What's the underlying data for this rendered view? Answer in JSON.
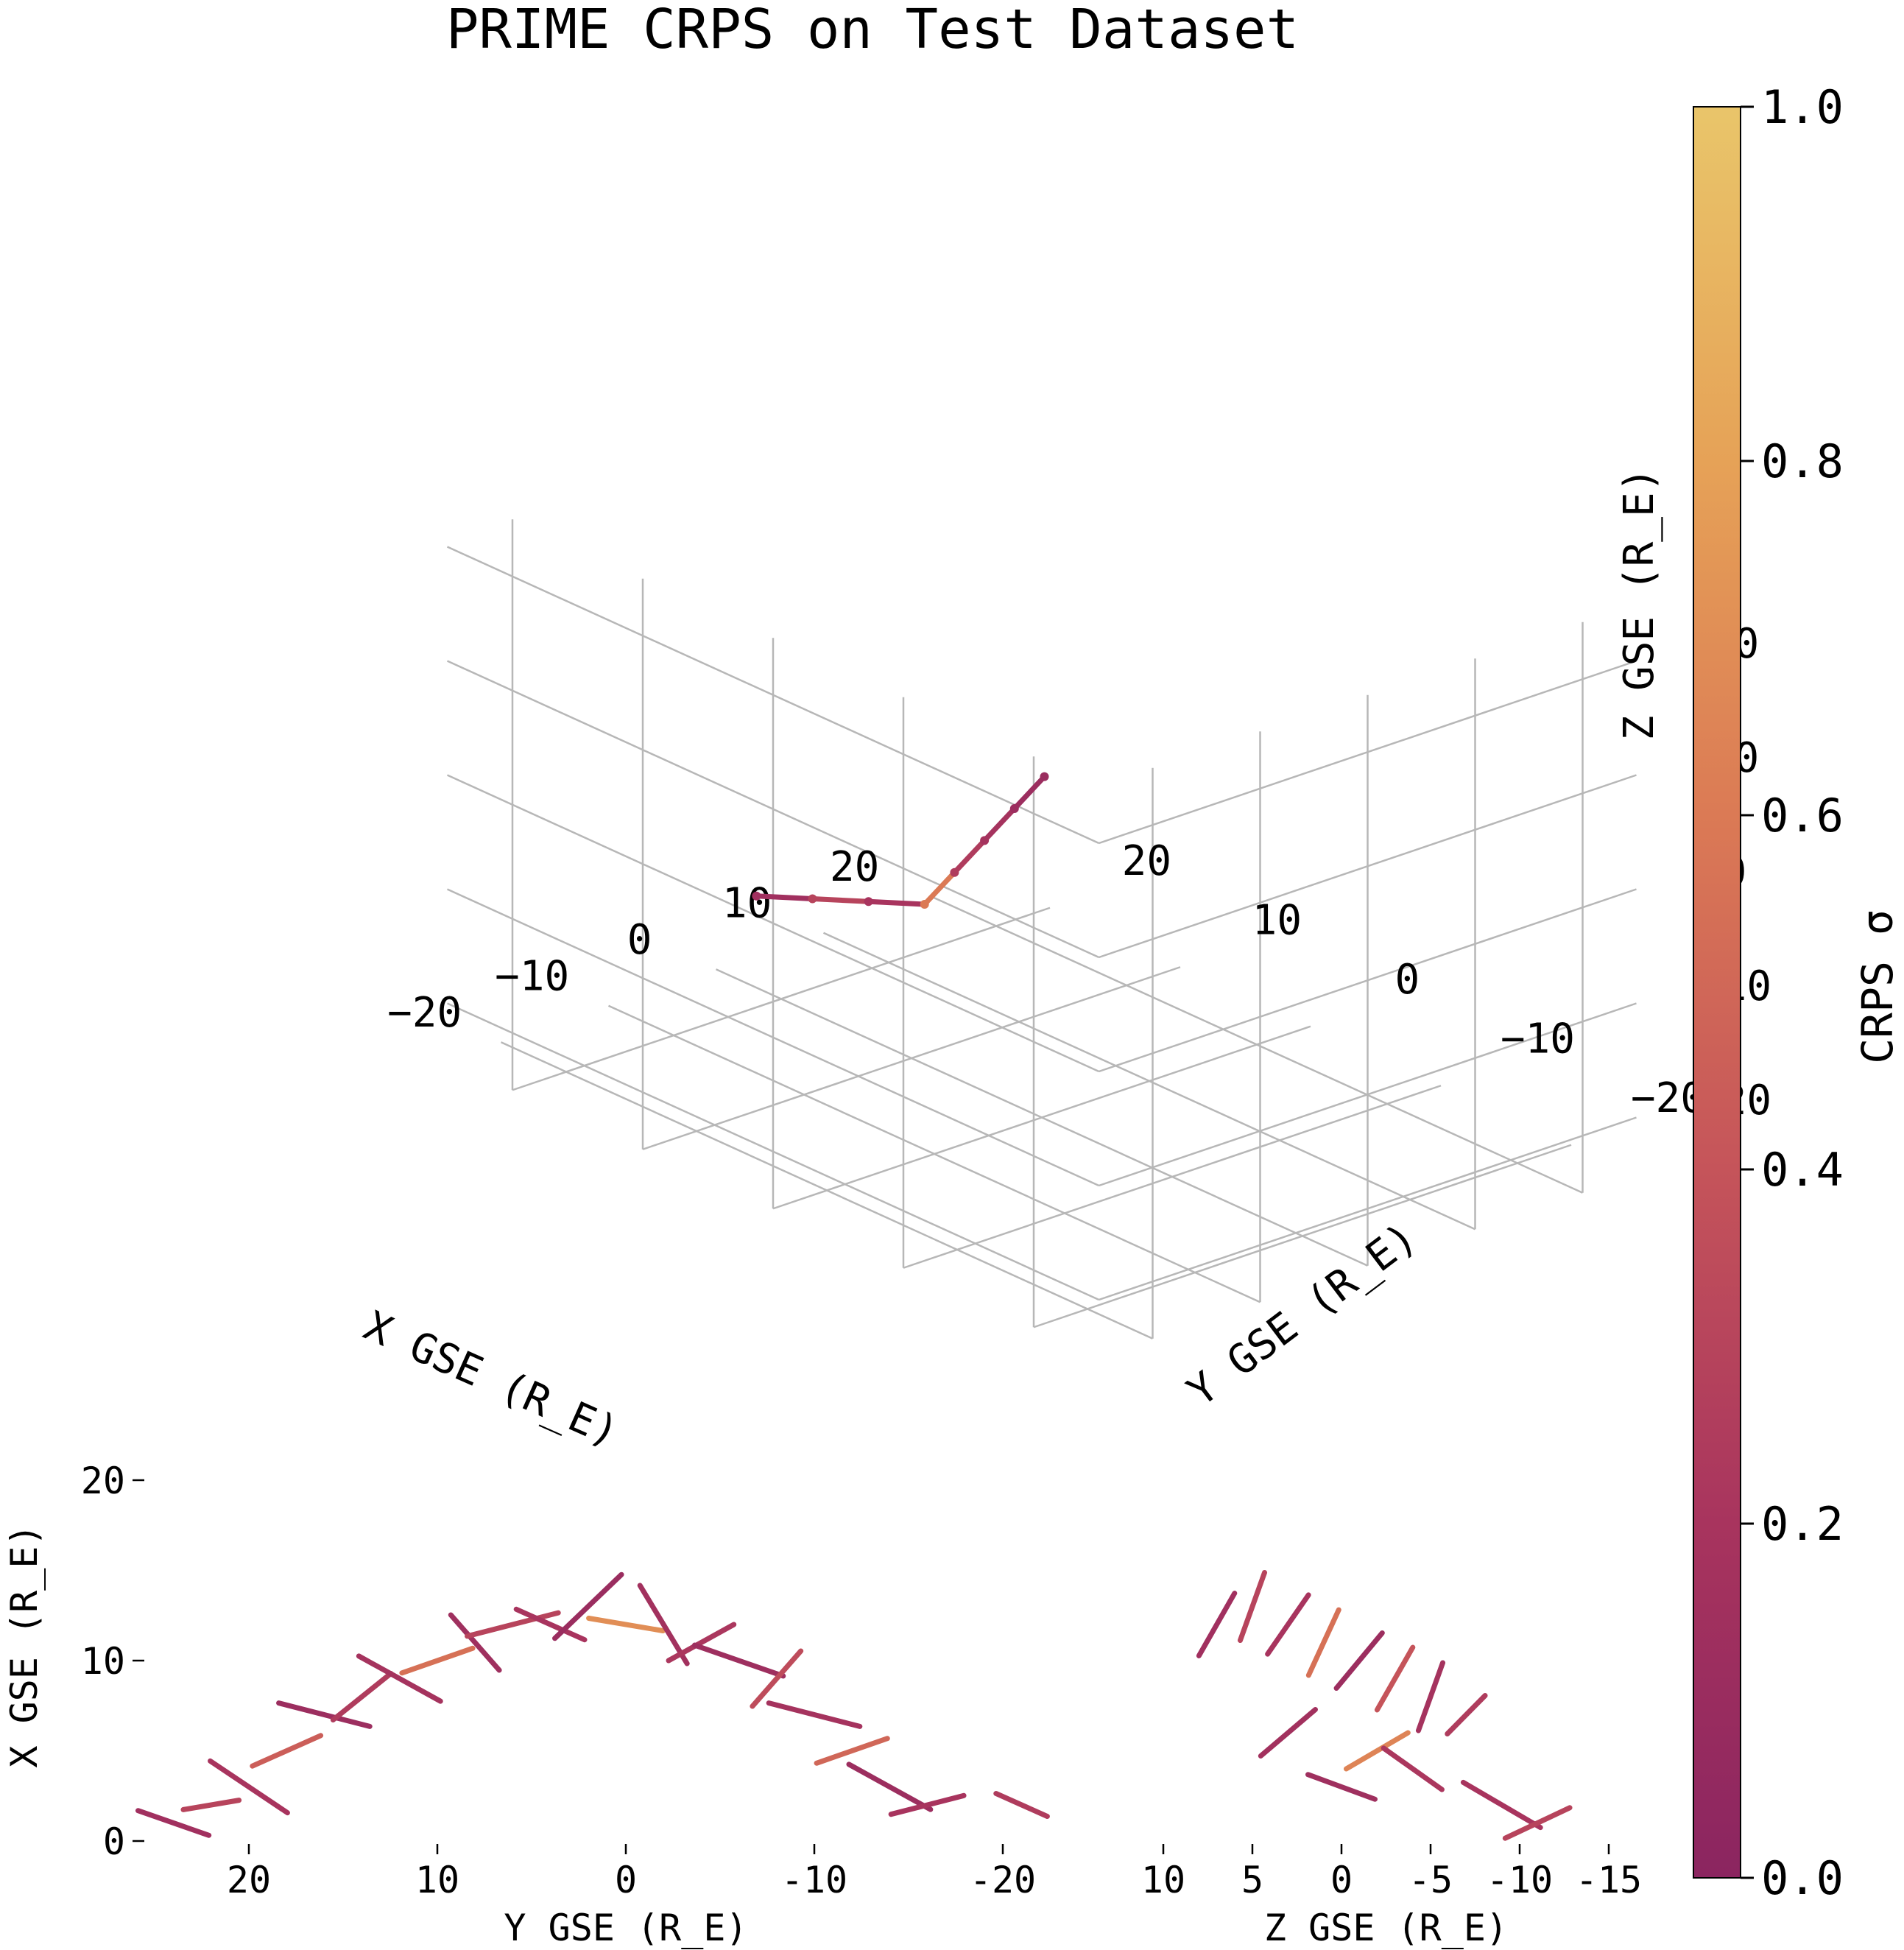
{
  "chart_data": [
    {
      "type": "scatter",
      "title": "PRIME CRPS on Test Dataset",
      "xlabel": "X GSE (R_E)",
      "ylabel": "Y GSE (R_E)",
      "zlabel": "Z GSE (R_E)",
      "xlim": [
        -25,
        25
      ],
      "ylim": [
        -25,
        25
      ],
      "zlim": [
        -25,
        25
      ],
      "x_ticks": [
        "−20",
        "−10",
        "0",
        "10",
        "20"
      ],
      "y_ticks": [
        "−20",
        "−10",
        "0",
        "10",
        "20"
      ],
      "z_ticks": [
        "−20",
        "−10",
        "0",
        "10",
        "20"
      ],
      "grid": true,
      "color_by": "CRPS σ",
      "note_values_are_approximate": true,
      "points": [
        {
          "x": 12,
          "y": -12,
          "z": -8,
          "crps": 0.15
        },
        {
          "x": 11,
          "y": -8,
          "z": -9,
          "crps": 0.3
        },
        {
          "x": 10,
          "y": -4,
          "z": -10,
          "crps": 0.2
        },
        {
          "x": 9,
          "y": 0,
          "z": -11,
          "crps": 0.6
        },
        {
          "x": 10,
          "y": 4,
          "z": -10,
          "crps": 0.25
        },
        {
          "x": 11,
          "y": 8,
          "z": -9,
          "crps": 0.18
        },
        {
          "x": 12,
          "y": 12,
          "z": -8,
          "crps": 0.12
        },
        {
          "x": 13,
          "y": 16,
          "z": -7,
          "crps": 0.1
        }
      ]
    },
    {
      "type": "scatter",
      "panel": "XY projection",
      "xlabel": "Y GSE (R_E)",
      "ylabel": "X GSE (R_E)",
      "xlim": [
        25,
        -25
      ],
      "ylim": [
        0,
        20
      ],
      "x_ticks": [
        "20",
        "10",
        "0",
        "-10",
        "-20"
      ],
      "y_ticks": [
        "0",
        "10",
        "20"
      ],
      "segments": [
        {
          "x": 24,
          "y": 1,
          "len": 4,
          "ang": 20,
          "crps": 0.15
        },
        {
          "x": 22,
          "y": 2,
          "len": 3,
          "ang": -10,
          "crps": 0.3
        },
        {
          "x": 20,
          "y": 3,
          "len": 5,
          "ang": 35,
          "crps": 0.2
        },
        {
          "x": 18,
          "y": 5,
          "len": 4,
          "ang": -25,
          "crps": 0.45
        },
        {
          "x": 16,
          "y": 7,
          "len": 5,
          "ang": 15,
          "crps": 0.12
        },
        {
          "x": 14,
          "y": 8,
          "len": 4,
          "ang": -40,
          "crps": 0.25
        },
        {
          "x": 12,
          "y": 9,
          "len": 5,
          "ang": 30,
          "crps": 0.18
        },
        {
          "x": 10,
          "y": 10,
          "len": 4,
          "ang": -20,
          "crps": 0.55
        },
        {
          "x": 8,
          "y": 11,
          "len": 4,
          "ang": 50,
          "crps": 0.14
        },
        {
          "x": 6,
          "y": 12,
          "len": 5,
          "ang": -15,
          "crps": 0.3
        },
        {
          "x": 4,
          "y": 12,
          "len": 4,
          "ang": 25,
          "crps": 0.2
        },
        {
          "x": 2,
          "y": 13,
          "len": 5,
          "ang": -45,
          "crps": 0.1
        },
        {
          "x": 0,
          "y": 12,
          "len": 4,
          "ang": 10,
          "crps": 0.7
        },
        {
          "x": -2,
          "y": 12,
          "len": 5,
          "ang": 60,
          "crps": 0.16
        },
        {
          "x": -4,
          "y": 11,
          "len": 4,
          "ang": -30,
          "crps": 0.22
        },
        {
          "x": -6,
          "y": 10,
          "len": 5,
          "ang": 20,
          "crps": 0.13
        },
        {
          "x": -8,
          "y": 9,
          "len": 4,
          "ang": -50,
          "crps": 0.35
        },
        {
          "x": -10,
          "y": 7,
          "len": 5,
          "ang": 15,
          "crps": 0.18
        },
        {
          "x": -12,
          "y": 5,
          "len": 4,
          "ang": -20,
          "crps": 0.5
        },
        {
          "x": -14,
          "y": 3,
          "len": 5,
          "ang": 30,
          "crps": 0.12
        },
        {
          "x": -16,
          "y": 2,
          "len": 4,
          "ang": -15,
          "crps": 0.2
        },
        {
          "x": -21,
          "y": 2,
          "len": 3,
          "ang": 25,
          "crps": 0.25
        }
      ]
    },
    {
      "type": "scatter",
      "panel": "XZ projection",
      "xlabel": "Z GSE (R_E)",
      "xlim": [
        10,
        -15
      ],
      "ylim": [
        0,
        20
      ],
      "x_ticks": [
        "10",
        "5",
        "0",
        "-5",
        "-10",
        "-15"
      ],
      "segments": [
        {
          "x": 7,
          "y": 12,
          "len": 4,
          "ang": -60,
          "crps": 0.15
        },
        {
          "x": 5,
          "y": 13,
          "len": 4,
          "ang": -70,
          "crps": 0.3
        },
        {
          "x": 3,
          "y": 12,
          "len": 4,
          "ang": -55,
          "crps": 0.2
        },
        {
          "x": 1,
          "y": 11,
          "len": 4,
          "ang": -65,
          "crps": 0.55
        },
        {
          "x": -1,
          "y": 10,
          "len": 4,
          "ang": -50,
          "crps": 0.12
        },
        {
          "x": -3,
          "y": 9,
          "len": 4,
          "ang": -60,
          "crps": 0.4
        },
        {
          "x": -5,
          "y": 8,
          "len": 4,
          "ang": -70,
          "crps": 0.18
        },
        {
          "x": -7,
          "y": 7,
          "len": 3,
          "ang": -45,
          "crps": 0.25
        },
        {
          "x": -2,
          "y": 5,
          "len": 4,
          "ang": -30,
          "crps": 0.65
        },
        {
          "x": 0,
          "y": 3,
          "len": 4,
          "ang": 20,
          "crps": 0.14
        },
        {
          "x": -9,
          "y": 2,
          "len": 5,
          "ang": 30,
          "crps": 0.2
        },
        {
          "x": -11,
          "y": 1,
          "len": 4,
          "ang": -25,
          "crps": 0.3
        },
        {
          "x": 3,
          "y": 6,
          "len": 4,
          "ang": -40,
          "crps": 0.16
        },
        {
          "x": -4,
          "y": 4,
          "len": 4,
          "ang": 35,
          "crps": 0.22
        }
      ]
    }
  ],
  "colorbar": {
    "label": "CRPS σ",
    "min": 0.0,
    "max": 1.0,
    "ticks": [
      "0.0",
      "0.2",
      "0.4",
      "0.6",
      "0.8",
      "1.0"
    ],
    "colors": [
      "#8b2560",
      "#a8345e",
      "#c5545a",
      "#db7a55",
      "#e6a257",
      "#e9c56a"
    ]
  }
}
